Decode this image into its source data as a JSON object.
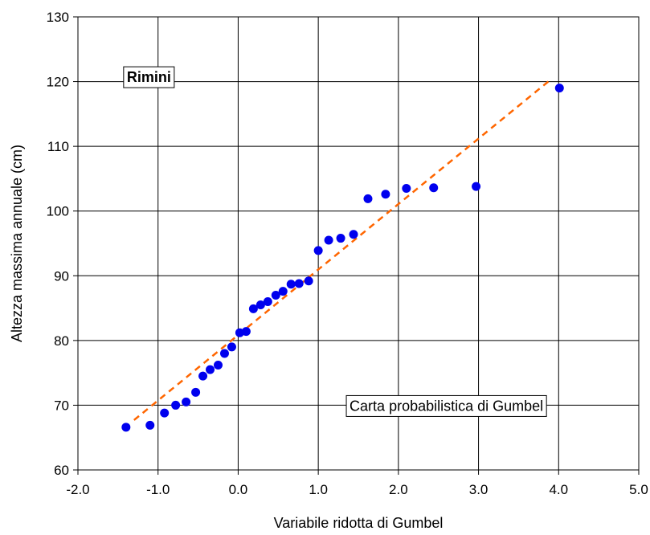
{
  "chart_data": {
    "type": "scatter",
    "title": "",
    "xlabel": "Variabile ridotta di Gumbel",
    "ylabel": "Altezza massima annuale (cm)",
    "xlim": [
      -2.0,
      5.0
    ],
    "ylim": [
      60,
      130
    ],
    "x_ticks": [
      -2.0,
      -1.0,
      0.0,
      1.0,
      2.0,
      3.0,
      4.0,
      5.0
    ],
    "x_tick_labels": [
      "-2.0",
      "-1.0",
      "0.0",
      "1.0",
      "2.0",
      "3.0",
      "4.0",
      "5.0"
    ],
    "y_ticks": [
      60,
      70,
      80,
      90,
      100,
      110,
      120,
      130
    ],
    "y_tick_labels": [
      "60",
      "70",
      "80",
      "90",
      "100",
      "110",
      "120",
      "130"
    ],
    "grid": true,
    "series": [
      {
        "kind": "points",
        "color": "#0000ee",
        "points": [
          {
            "x": -1.4,
            "y": 66.6
          },
          {
            "x": -1.1,
            "y": 66.9
          },
          {
            "x": -0.92,
            "y": 68.8
          },
          {
            "x": -0.78,
            "y": 70.0
          },
          {
            "x": -0.65,
            "y": 70.5
          },
          {
            "x": -0.53,
            "y": 72.0
          },
          {
            "x": -0.44,
            "y": 74.5
          },
          {
            "x": -0.35,
            "y": 75.5
          },
          {
            "x": -0.25,
            "y": 76.2
          },
          {
            "x": -0.17,
            "y": 78.0
          },
          {
            "x": -0.08,
            "y": 79.0
          },
          {
            "x": 0.02,
            "y": 81.2
          },
          {
            "x": 0.1,
            "y": 81.4
          },
          {
            "x": 0.19,
            "y": 84.9
          },
          {
            "x": 0.28,
            "y": 85.5
          },
          {
            "x": 0.37,
            "y": 86.0
          },
          {
            "x": 0.47,
            "y": 87.0
          },
          {
            "x": 0.56,
            "y": 87.6
          },
          {
            "x": 0.66,
            "y": 88.7
          },
          {
            "x": 0.76,
            "y": 88.8
          },
          {
            "x": 0.88,
            "y": 89.2
          },
          {
            "x": 1.0,
            "y": 93.9
          },
          {
            "x": 1.13,
            "y": 95.5
          },
          {
            "x": 1.28,
            "y": 95.8
          },
          {
            "x": 1.44,
            "y": 96.4
          },
          {
            "x": 1.62,
            "y": 101.9
          },
          {
            "x": 1.84,
            "y": 102.6
          },
          {
            "x": 2.1,
            "y": 103.5
          },
          {
            "x": 2.44,
            "y": 103.6
          },
          {
            "x": 2.97,
            "y": 103.8
          },
          {
            "x": 4.01,
            "y": 119.0
          }
        ]
      },
      {
        "kind": "fit-line",
        "color": "#ff6600",
        "dashed": true,
        "points": [
          {
            "x": -1.3,
            "y": 67.7
          },
          {
            "x": 3.9,
            "y": 120.3
          }
        ]
      }
    ],
    "annotations": [
      {
        "text": "Rimini",
        "x": -1.45,
        "y": 120.8,
        "bold": true
      },
      {
        "text": "Carta probabilistica di Gumbel",
        "x": 1.33,
        "y": 70.0,
        "bold": false
      }
    ]
  }
}
